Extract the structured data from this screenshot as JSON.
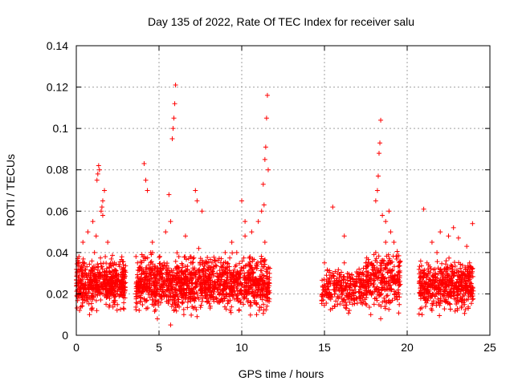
{
  "chart_data": {
    "type": "scatter",
    "title": "Day 135 of 2022, Rate Of TEC Index for receiver salu",
    "xlabel": "GPS time / hours",
    "ylabel": "ROTI / TECUs",
    "xlim": [
      0,
      25
    ],
    "ylim": [
      0,
      0.14
    ],
    "xticks": [
      "0",
      "5",
      "10",
      "15",
      "20",
      "25"
    ],
    "yticks": [
      "0",
      "0.02",
      "0.04",
      "0.06",
      "0.08",
      "0.1",
      "0.12",
      "0.14"
    ],
    "grid": true,
    "marker": "plus",
    "color": "#ff0000",
    "series": [
      {
        "name": "ROTI",
        "x": [
          0.1,
          0.35,
          0.6,
          0.9,
          1.2,
          1.5,
          1.8,
          2.1,
          2.4,
          2.8,
          0.2,
          0.5,
          0.8,
          1.1,
          1.4,
          1.7,
          2.0,
          2.3,
          2.6,
          2.95,
          0.4,
          0.7,
          1.0,
          1.25,
          1.3,
          1.35,
          1.4,
          1.5,
          1.55,
          1.6,
          1.7,
          1.9,
          2.2,
          1.2,
          1.6,
          3.6,
          3.9,
          4.3,
          4.7,
          5.1,
          5.5,
          5.9,
          6.3,
          6.7,
          7.1,
          7.5,
          7.9,
          8.3,
          8.7,
          9.1,
          9.5,
          9.9,
          10.3,
          10.7,
          11.1,
          11.5,
          3.7,
          4.1,
          4.5,
          4.9,
          5.3,
          5.7,
          6.1,
          6.5,
          6.9,
          7.3,
          7.7,
          8.1,
          8.5,
          8.9,
          9.3,
          9.7,
          10.1,
          10.5,
          10.9,
          11.3,
          3.8,
          4.2,
          4.6,
          5.0,
          5.4,
          5.8,
          6.2,
          6.6,
          7.0,
          7.4,
          7.8,
          8.2,
          8.6,
          9.0,
          9.4,
          9.8,
          10.2,
          10.6,
          11.0,
          11.4,
          4.1,
          4.2,
          4.3,
          5.6,
          5.7,
          5.8,
          5.85,
          5.9,
          5.95,
          6.0,
          7.2,
          7.3,
          7.6,
          10.0,
          10.2,
          11.2,
          11.3,
          11.4,
          11.45,
          11.5,
          11.55,
          11.6,
          11.35,
          14.9,
          15.2,
          15.5,
          15.8,
          15.0,
          15.3,
          15.6,
          15.9,
          16.1,
          16.4,
          16.7,
          17.0,
          17.3,
          16.2,
          16.5,
          16.8,
          17.1,
          17.4,
          17.7,
          18.0,
          18.3,
          18.6,
          18.9,
          19.2,
          19.5,
          17.5,
          17.8,
          18.1,
          18.4,
          18.7,
          19.0,
          19.3,
          18.1,
          18.2,
          18.25,
          18.3,
          18.35,
          18.4,
          18.5,
          18.7,
          18.9,
          19.0,
          19.2,
          15.5,
          16.2,
          20.8,
          21.1,
          21.4,
          21.7,
          22.0,
          22.3,
          22.6,
          22.9,
          23.2,
          23.5,
          23.8,
          20.9,
          21.2,
          21.5,
          21.8,
          22.1,
          22.4,
          22.7,
          23.0,
          23.3,
          23.6,
          23.9,
          21.0,
          21.5,
          22.0,
          22.5,
          22.8,
          23.1,
          23.6,
          23.95
        ],
        "y": [
          0.02,
          0.025,
          0.018,
          0.03,
          0.022,
          0.028,
          0.015,
          0.024,
          0.02,
          0.019,
          0.012,
          0.035,
          0.01,
          0.04,
          0.03,
          0.027,
          0.033,
          0.016,
          0.026,
          0.022,
          0.045,
          0.05,
          0.055,
          0.075,
          0.078,
          0.082,
          0.08,
          0.06,
          0.062,
          0.058,
          0.07,
          0.045,
          0.035,
          0.048,
          0.065,
          0.02,
          0.018,
          0.025,
          0.015,
          0.022,
          0.03,
          0.012,
          0.02,
          0.027,
          0.018,
          0.024,
          0.016,
          0.021,
          0.026,
          0.02,
          0.023,
          0.017,
          0.025,
          0.03,
          0.019,
          0.022,
          0.035,
          0.03,
          0.04,
          0.008,
          0.035,
          0.005,
          0.033,
          0.01,
          0.028,
          0.009,
          0.032,
          0.014,
          0.03,
          0.035,
          0.012,
          0.04,
          0.015,
          0.038,
          0.01,
          0.036,
          0.012,
          0.028,
          0.045,
          0.02,
          0.05,
          0.015,
          0.038,
          0.048,
          0.025,
          0.042,
          0.03,
          0.035,
          0.028,
          0.04,
          0.045,
          0.03,
          0.048,
          0.05,
          0.055,
          0.045,
          0.083,
          0.075,
          0.07,
          0.068,
          0.055,
          0.095,
          0.1,
          0.105,
          0.112,
          0.121,
          0.07,
          0.065,
          0.06,
          0.065,
          0.055,
          0.06,
          0.073,
          0.085,
          0.091,
          0.105,
          0.116,
          0.08,
          0.063,
          0.02,
          0.025,
          0.03,
          0.015,
          0.035,
          0.018,
          0.022,
          0.028,
          0.02,
          0.025,
          0.015,
          0.03,
          0.018,
          0.035,
          0.012,
          0.022,
          0.027,
          0.02,
          0.025,
          0.015,
          0.03,
          0.018,
          0.022,
          0.028,
          0.02,
          0.035,
          0.01,
          0.04,
          0.008,
          0.045,
          0.03,
          0.025,
          0.065,
          0.07,
          0.077,
          0.088,
          0.093,
          0.104,
          0.058,
          0.055,
          0.06,
          0.05,
          0.045,
          0.062,
          0.048,
          0.02,
          0.025,
          0.018,
          0.03,
          0.022,
          0.028,
          0.015,
          0.024,
          0.02,
          0.026,
          0.019,
          0.01,
          0.035,
          0.012,
          0.04,
          0.03,
          0.027,
          0.033,
          0.016,
          0.026,
          0.022,
          0.03,
          0.061,
          0.045,
          0.05,
          0.048,
          0.052,
          0.047,
          0.043,
          0.054
        ]
      }
    ],
    "density_bands": [
      {
        "x": [
          0,
          3.0
        ],
        "ylow": 0.01,
        "yhigh": 0.04,
        "n": 550
      },
      {
        "x": [
          3.6,
          11.7
        ],
        "ylow": 0.008,
        "yhigh": 0.042,
        "n": 1300
      },
      {
        "x": [
          14.8,
          17.5
        ],
        "ylow": 0.01,
        "yhigh": 0.036,
        "n": 260
      },
      {
        "x": [
          17.5,
          19.6
        ],
        "ylow": 0.008,
        "yhigh": 0.045,
        "n": 280
      },
      {
        "x": [
          20.7,
          24.0
        ],
        "ylow": 0.008,
        "yhigh": 0.04,
        "n": 520
      }
    ]
  }
}
